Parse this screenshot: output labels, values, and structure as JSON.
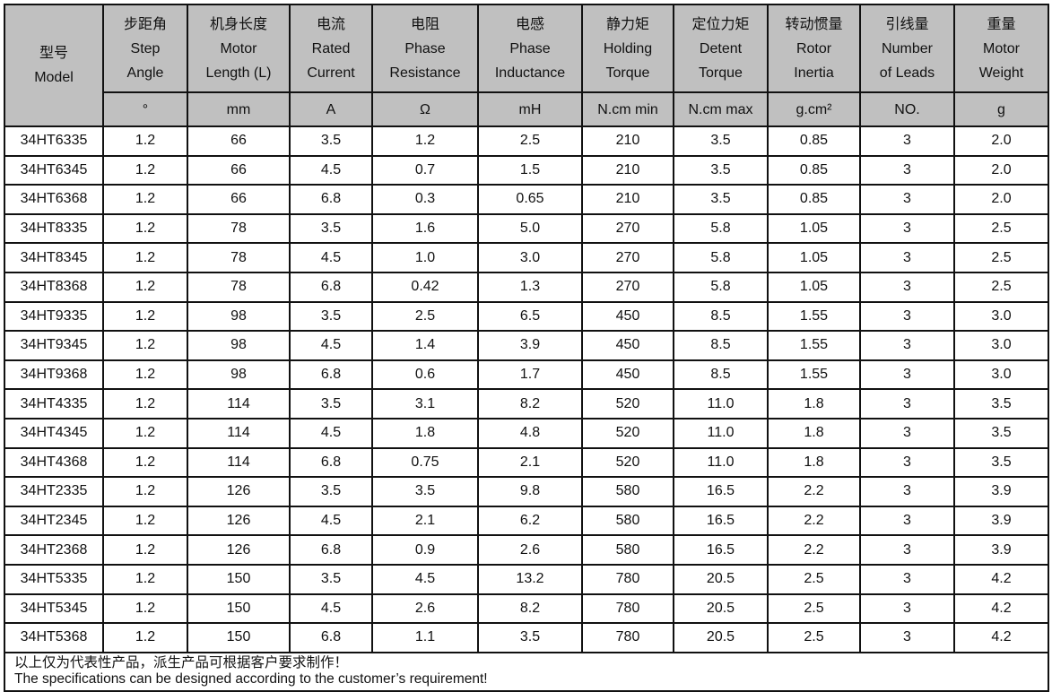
{
  "columns": [
    {
      "zh": "型号",
      "en": [
        "Model"
      ],
      "unit": null
    },
    {
      "zh": "步距角",
      "en": [
        "Step",
        "Angle"
      ],
      "unit": "°"
    },
    {
      "zh": "机身长度",
      "en": [
        "Motor",
        "Length (L)"
      ],
      "unit": "mm"
    },
    {
      "zh": "电流",
      "en": [
        "Rated",
        "Current"
      ],
      "unit": "A"
    },
    {
      "zh": "电阻",
      "en": [
        "Phase",
        "Resistance"
      ],
      "unit": "Ω"
    },
    {
      "zh": "电感",
      "en": [
        "Phase",
        "Inductance"
      ],
      "unit": "mH"
    },
    {
      "zh": "静力矩",
      "en": [
        "Holding",
        "Torque"
      ],
      "unit": "N.cm min"
    },
    {
      "zh": "定位力矩",
      "en": [
        "Detent",
        "Torque"
      ],
      "unit": "N.cm max"
    },
    {
      "zh": "转动惯量",
      "en": [
        "Rotor",
        "Inertia"
      ],
      "unit": "g.cm²"
    },
    {
      "zh": "引线量",
      "en": [
        "Number",
        "of   Leads"
      ],
      "unit": "NO."
    },
    {
      "zh": "重量",
      "en": [
        "Motor",
        "Weight"
      ],
      "unit": "g"
    }
  ],
  "rows": [
    [
      "34HT6335",
      "1.2",
      "66",
      "3.5",
      "1.2",
      "2.5",
      "210",
      "3.5",
      "0.85",
      "3",
      "2.0"
    ],
    [
      "34HT6345",
      "1.2",
      "66",
      "4.5",
      "0.7",
      "1.5",
      "210",
      "3.5",
      "0.85",
      "3",
      "2.0"
    ],
    [
      "34HT6368",
      "1.2",
      "66",
      "6.8",
      "0.3",
      "0.65",
      "210",
      "3.5",
      "0.85",
      "3",
      "2.0"
    ],
    [
      "34HT8335",
      "1.2",
      "78",
      "3.5",
      "1.6",
      "5.0",
      "270",
      "5.8",
      "1.05",
      "3",
      "2.5"
    ],
    [
      "34HT8345",
      "1.2",
      "78",
      "4.5",
      "1.0",
      "3.0",
      "270",
      "5.8",
      "1.05",
      "3",
      "2.5"
    ],
    [
      "34HT8368",
      "1.2",
      "78",
      "6.8",
      "0.42",
      "1.3",
      "270",
      "5.8",
      "1.05",
      "3",
      "2.5"
    ],
    [
      "34HT9335",
      "1.2",
      "98",
      "3.5",
      "2.5",
      "6.5",
      "450",
      "8.5",
      "1.55",
      "3",
      "3.0"
    ],
    [
      "34HT9345",
      "1.2",
      "98",
      "4.5",
      "1.4",
      "3.9",
      "450",
      "8.5",
      "1.55",
      "3",
      "3.0"
    ],
    [
      "34HT9368",
      "1.2",
      "98",
      "6.8",
      "0.6",
      "1.7",
      "450",
      "8.5",
      "1.55",
      "3",
      "3.0"
    ],
    [
      "34HT4335",
      "1.2",
      "114",
      "3.5",
      "3.1",
      "8.2",
      "520",
      "11.0",
      "1.8",
      "3",
      "3.5"
    ],
    [
      "34HT4345",
      "1.2",
      "114",
      "4.5",
      "1.8",
      "4.8",
      "520",
      "11.0",
      "1.8",
      "3",
      "3.5"
    ],
    [
      "34HT4368",
      "1.2",
      "114",
      "6.8",
      "0.75",
      "2.1",
      "520",
      "11.0",
      "1.8",
      "3",
      "3.5"
    ],
    [
      "34HT2335",
      "1.2",
      "126",
      "3.5",
      "3.5",
      "9.8",
      "580",
      "16.5",
      "2.2",
      "3",
      "3.9"
    ],
    [
      "34HT2345",
      "1.2",
      "126",
      "4.5",
      "2.1",
      "6.2",
      "580",
      "16.5",
      "2.2",
      "3",
      "3.9"
    ],
    [
      "34HT2368",
      "1.2",
      "126",
      "6.8",
      "0.9",
      "2.6",
      "580",
      "16.5",
      "2.2",
      "3",
      "3.9"
    ],
    [
      "34HT5335",
      "1.2",
      "150",
      "3.5",
      "4.5",
      "13.2",
      "780",
      "20.5",
      "2.5",
      "3",
      "4.2"
    ],
    [
      "34HT5345",
      "1.2",
      "150",
      "4.5",
      "2.6",
      "8.2",
      "780",
      "20.5",
      "2.5",
      "3",
      "4.2"
    ],
    [
      "34HT5368",
      "1.2",
      "150",
      "6.8",
      "1.1",
      "3.5",
      "780",
      "20.5",
      "2.5",
      "3",
      "4.2"
    ]
  ],
  "footer": {
    "zh": "以上仅为代表性产品，派生产品可根据客户要求制作！",
    "en": "The specifications can be designed according to the customer’s requirement!"
  },
  "colors": {
    "header_bg": "#c0c0c0",
    "border": "#111111"
  }
}
